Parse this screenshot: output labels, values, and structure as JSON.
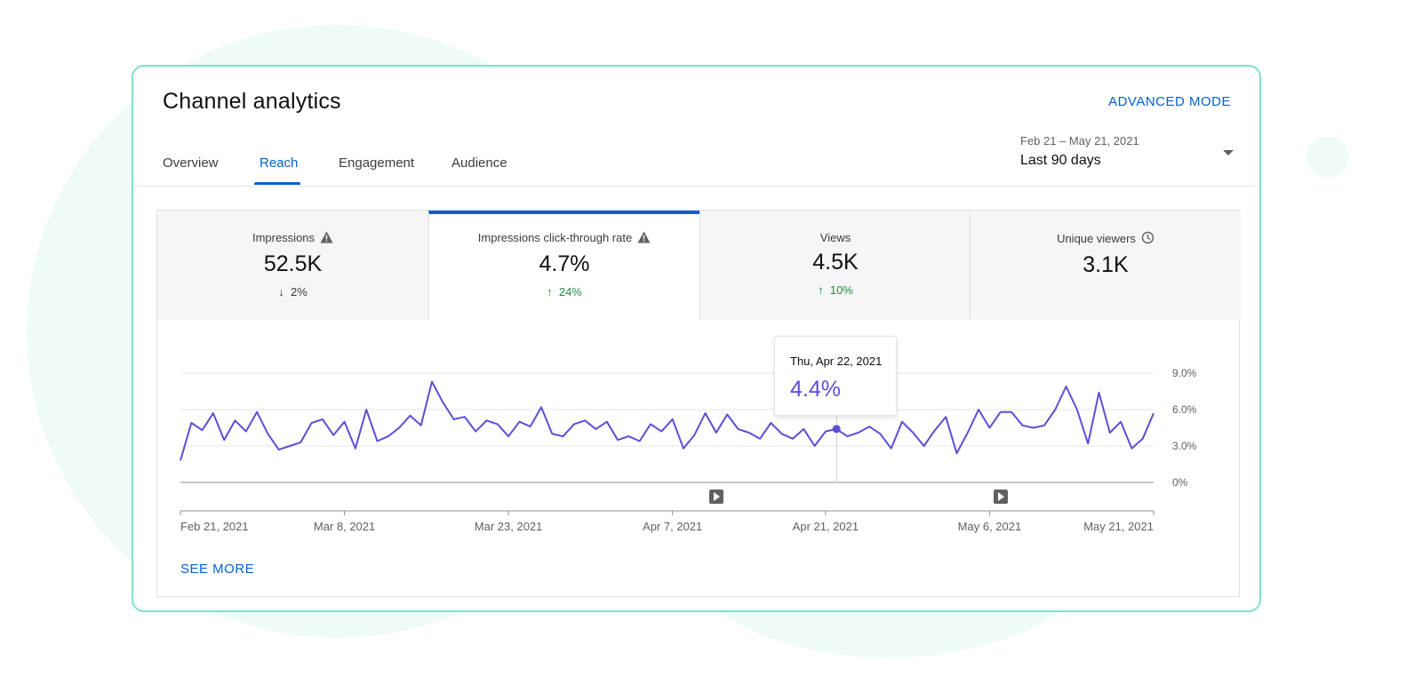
{
  "header": {
    "title": "Channel analytics",
    "advanced_mode": "ADVANCED MODE"
  },
  "tabs": [
    {
      "label": "Overview",
      "active": false
    },
    {
      "label": "Reach",
      "active": true
    },
    {
      "label": "Engagement",
      "active": false
    },
    {
      "label": "Audience",
      "active": false
    }
  ],
  "date_range": {
    "range": "Feb 21 – May 21, 2021",
    "label": "Last 90 days"
  },
  "metrics": [
    {
      "label": "Impressions",
      "icon": "warning-icon",
      "value": "52.5K",
      "change": "2%",
      "direction": "down"
    },
    {
      "label": "Impressions click-through rate",
      "icon": "warning-icon",
      "value": "4.7%",
      "change": "24%",
      "direction": "up"
    },
    {
      "label": "Views",
      "icon": "",
      "value": "4.5K",
      "change": "10%",
      "direction": "up"
    },
    {
      "label": "Unique viewers",
      "icon": "clock-icon",
      "value": "3.1K",
      "change": "",
      "direction": ""
    }
  ],
  "tooltip": {
    "date": "Thu, Apr 22, 2021",
    "value": "4.4%"
  },
  "see_more": "SEE MORE",
  "colors": {
    "accent": "#065fd4",
    "line": "#5b4fd6",
    "positive": "#1e8e3e",
    "card_border": "#7be3cb"
  },
  "chart_data": {
    "type": "line",
    "x_ticks": [
      "Feb 21, 2021",
      "Mar 8, 2021",
      "Mar 23, 2021",
      "Apr 7, 2021",
      "Apr 21, 2021",
      "May 6, 2021",
      "May 21, 2021"
    ],
    "y_ticks": [
      "0%",
      "3.0%",
      "6.0%",
      "9.0%"
    ],
    "ylim": [
      0,
      9
    ],
    "series": [
      {
        "values": [
          1.8,
          4.9,
          4.3,
          5.7,
          3.5,
          5.1,
          4.2,
          5.8,
          4.0,
          2.7,
          3.0,
          3.3,
          4.9,
          5.2,
          3.9,
          5.0,
          2.8,
          6.0,
          3.4,
          3.8,
          4.5,
          5.5,
          4.7,
          8.3,
          6.6,
          5.2,
          5.4,
          4.2,
          5.1,
          4.8,
          3.8,
          5.0,
          4.6,
          6.2,
          4.0,
          3.8,
          4.8,
          5.1,
          4.4,
          5.0,
          3.5,
          3.8,
          3.4,
          4.8,
          4.2,
          5.2,
          2.8,
          3.9,
          5.7,
          4.1,
          5.6,
          4.4,
          4.1,
          3.6,
          4.9,
          4.0,
          3.6,
          4.4,
          3.0,
          4.2,
          4.4,
          3.8,
          4.1,
          4.6,
          4.0,
          2.8,
          5.0,
          4.1,
          3.0,
          4.3,
          5.4,
          2.4,
          4.1,
          6.0,
          4.5,
          5.8,
          5.8,
          4.7,
          4.5,
          4.7,
          6.0,
          7.9,
          6.0,
          3.2,
          7.4,
          4.1,
          5.0,
          2.8,
          3.6,
          5.7
        ]
      }
    ],
    "highlight": {
      "index": 60,
      "value": 4.4
    },
    "video_markers": [
      "play-marker-icon",
      "play-marker-icon"
    ],
    "grid": true
  }
}
